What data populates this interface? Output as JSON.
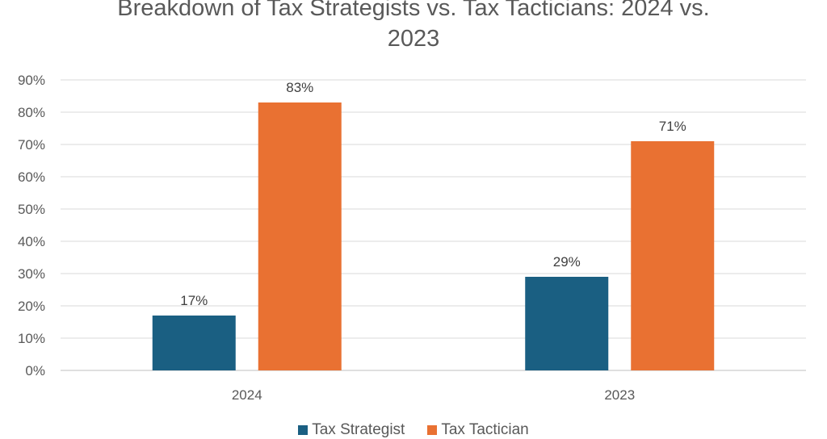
{
  "chart_data": {
    "type": "bar",
    "title_line1": "Breakdown of Tax Strategists vs. Tax Tacticians: 2024 vs.",
    "title_line2": "2023",
    "categories": [
      "2024",
      "2023"
    ],
    "series": [
      {
        "name": "Tax Strategist",
        "values": [
          17,
          29
        ],
        "labels": [
          "17%",
          "29%"
        ],
        "color": "#1a5f82"
      },
      {
        "name": "Tax Tactician",
        "values": [
          83,
          71
        ],
        "labels": [
          "83%",
          "71%"
        ],
        "color": "#e97132"
      }
    ],
    "ylim": [
      0,
      90
    ],
    "yticks": [
      "0%",
      "10%",
      "20%",
      "30%",
      "40%",
      "50%",
      "60%",
      "70%",
      "80%",
      "90%"
    ],
    "grid": true,
    "legend": "bottom"
  }
}
